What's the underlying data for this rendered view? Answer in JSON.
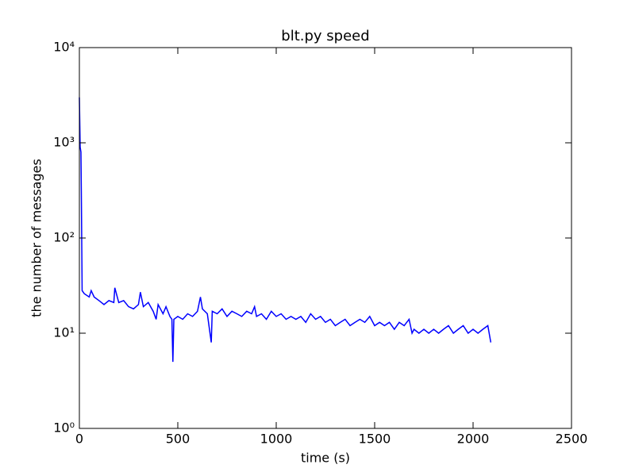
{
  "chart_data": {
    "type": "line",
    "title": "blt.py speed",
    "xlabel": "time (s)",
    "ylabel": "the number of messages",
    "xlim": [
      0,
      2500
    ],
    "xticks": [
      0,
      500,
      1000,
      1500,
      2000,
      2500
    ],
    "ylim": [
      1,
      10000
    ],
    "yscale": "log",
    "yticks": [
      {
        "value": 1,
        "label": "10⁰"
      },
      {
        "value": 10,
        "label": "10¹"
      },
      {
        "value": 100,
        "label": "10²"
      },
      {
        "value": 1000,
        "label": "10³"
      },
      {
        "value": 10000,
        "label": "10⁴"
      }
    ],
    "x": [
      0,
      4,
      8,
      10,
      14,
      25,
      50,
      60,
      75,
      100,
      125,
      150,
      175,
      180,
      200,
      225,
      250,
      275,
      300,
      310,
      325,
      350,
      375,
      390,
      400,
      425,
      440,
      460,
      470,
      475,
      480,
      500,
      525,
      550,
      575,
      600,
      615,
      625,
      650,
      670,
      675,
      700,
      725,
      750,
      775,
      800,
      825,
      850,
      875,
      890,
      900,
      925,
      950,
      975,
      1000,
      1025,
      1050,
      1075,
      1100,
      1125,
      1150,
      1175,
      1200,
      1225,
      1250,
      1275,
      1300,
      1325,
      1350,
      1375,
      1400,
      1425,
      1450,
      1475,
      1500,
      1525,
      1550,
      1575,
      1600,
      1625,
      1650,
      1675,
      1690,
      1700,
      1725,
      1750,
      1775,
      1800,
      1825,
      1850,
      1875,
      1900,
      1925,
      1950,
      1975,
      2000,
      2025,
      2050,
      2075,
      2090
    ],
    "series": [
      {
        "color": "#0000ff",
        "values": [
          3000,
          900,
          800,
          300,
          28,
          26,
          24,
          28,
          24,
          22,
          20,
          22,
          21,
          30,
          21,
          22,
          19,
          18,
          20,
          27,
          19,
          21,
          17,
          14,
          20,
          16,
          19,
          15,
          14,
          5,
          14,
          15,
          14,
          16,
          15,
          17,
          24,
          18,
          16,
          8,
          17,
          16,
          18,
          15,
          17,
          16,
          15,
          17,
          16,
          19,
          15,
          16,
          14,
          17,
          15,
          16,
          14,
          15,
          14,
          15,
          13,
          16,
          14,
          15,
          13,
          14,
          12,
          13,
          14,
          12,
          13,
          14,
          13,
          15,
          12,
          13,
          12,
          13,
          11,
          13,
          12,
          14,
          10,
          11,
          10,
          11,
          10,
          11,
          10,
          11,
          12,
          10,
          11,
          12,
          10,
          11,
          10,
          11,
          12,
          8
        ]
      }
    ]
  }
}
